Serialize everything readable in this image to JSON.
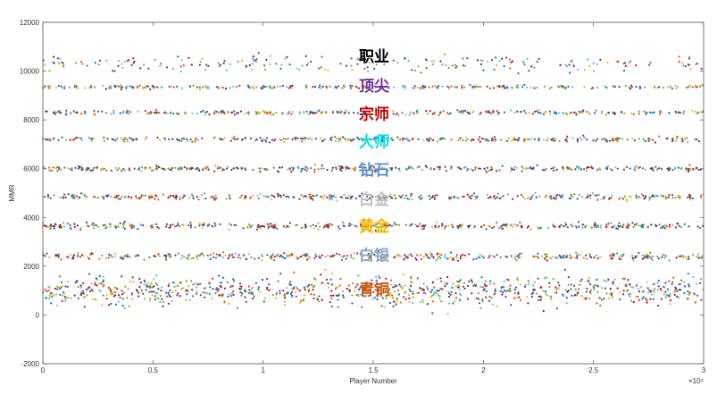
{
  "chart_data": {
    "type": "scatter",
    "title": "",
    "xlabel": "Player Number",
    "ylabel": "MMR",
    "xlim": [
      0,
      30000
    ],
    "ylim": [
      -2000,
      12000
    ],
    "x_ticks": [
      0,
      5000,
      10000,
      15000,
      20000,
      25000,
      30000
    ],
    "x_tick_labels": [
      "0",
      "0.5",
      "1",
      "1.5",
      "2",
      "2.5",
      "3"
    ],
    "x_exponent_label": "×10⁴",
    "y_ticks": [
      -2000,
      0,
      2000,
      4000,
      6000,
      8000,
      10000,
      12000
    ],
    "y_tick_labels": [
      "-2000",
      "0",
      "2000",
      "4000",
      "6000",
      "8000",
      "10000",
      "12000"
    ],
    "grid": false,
    "point_colors": [
      "#0072bd",
      "#d95319",
      "#edb120",
      "#7e2f8e",
      "#77ac30",
      "#4dbeee",
      "#a2142f"
    ],
    "series": [
      {
        "band_center": 1000,
        "spread": 700,
        "count": 900
      },
      {
        "band_center": 2400,
        "spread": 170,
        "count": 420
      },
      {
        "band_center": 3650,
        "spread": 150,
        "count": 420
      },
      {
        "band_center": 4850,
        "spread": 140,
        "count": 420
      },
      {
        "band_center": 6000,
        "spread": 130,
        "count": 420
      },
      {
        "band_center": 7200,
        "spread": 110,
        "count": 360
      },
      {
        "band_center": 8300,
        "spread": 100,
        "count": 330
      },
      {
        "band_center": 9350,
        "spread": 90,
        "count": 300
      },
      {
        "band_center": 10300,
        "spread": 400,
        "count": 220
      }
    ],
    "annotations": [
      {
        "text": "职业",
        "x": 15000,
        "y": 10600,
        "color": "#000000"
      },
      {
        "text": "顶尖",
        "x": 15000,
        "y": 9400,
        "color": "#7030a0"
      },
      {
        "text": "宗师",
        "x": 15000,
        "y": 8250,
        "color": "#c00000"
      },
      {
        "text": "大师",
        "x": 15000,
        "y": 7100,
        "color": "#00e0e0"
      },
      {
        "text": "钻石",
        "x": 15000,
        "y": 5950,
        "color": "#5b8fd4"
      },
      {
        "text": "白金",
        "x": 15000,
        "y": 4750,
        "color": "#bfbfbf"
      },
      {
        "text": "黄金",
        "x": 15000,
        "y": 3650,
        "color": "#f0b400"
      },
      {
        "text": "白银",
        "x": 15000,
        "y": 2450,
        "color": "#8ea9c8"
      },
      {
        "text": "青铜",
        "x": 15000,
        "y": 1050,
        "color": "#c55a11"
      }
    ]
  }
}
